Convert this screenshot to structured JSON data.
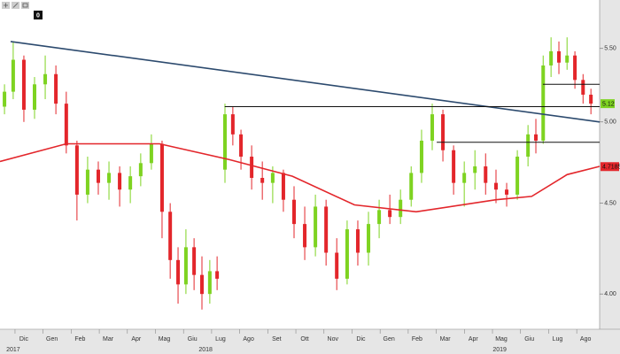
{
  "toolbar": {
    "badge": "0"
  },
  "chart_data": {
    "type": "candlestick",
    "log_scale": true,
    "ylim": [
      3.83,
      5.79
    ],
    "yticks": [
      {
        "value": 4,
        "label": "4.00"
      },
      {
        "value": 4.5,
        "label": "4.50"
      },
      {
        "value": 5,
        "label": "5.00"
      },
      {
        "value": 5.5,
        "label": "5.50"
      }
    ],
    "xlim": [
      0.15,
      21.5
    ],
    "xticks": [
      {
        "value": 1,
        "label": "Dic"
      },
      {
        "value": 2,
        "label": "Gen"
      },
      {
        "value": 3,
        "label": "Feb"
      },
      {
        "value": 4,
        "label": "Mar"
      },
      {
        "value": 5,
        "label": "Apr"
      },
      {
        "value": 6,
        "label": "Mag"
      },
      {
        "value": 7,
        "label": "Giu"
      },
      {
        "value": 8,
        "label": "Lug"
      },
      {
        "value": 9,
        "label": "Ago"
      },
      {
        "value": 10,
        "label": "Set"
      },
      {
        "value": 11,
        "label": "Ott"
      },
      {
        "value": 12,
        "label": "Nov"
      },
      {
        "value": 13,
        "label": "Dic"
      },
      {
        "value": 14,
        "label": "Gen"
      },
      {
        "value": 15,
        "label": "Feb"
      },
      {
        "value": 16,
        "label": "Mar"
      },
      {
        "value": 17,
        "label": "Apr"
      },
      {
        "value": 18,
        "label": "Mag"
      },
      {
        "value": 19,
        "label": "Giu"
      },
      {
        "value": 20,
        "label": "Lug"
      },
      {
        "value": 21,
        "label": "Ago"
      }
    ],
    "year_labels": [
      {
        "value": 0.62,
        "label": "2017"
      },
      {
        "value": 7.47,
        "label": "2018"
      },
      {
        "value": 17.94,
        "label": "2019"
      }
    ],
    "candles": {
      "up_color": "#7ed321",
      "down_color": "#e3262b",
      "x": [
        0.31,
        0.62,
        1.0,
        1.38,
        1.76,
        2.14,
        2.51,
        2.89,
        3.27,
        3.65,
        4.03,
        4.41,
        4.79,
        5.16,
        5.54,
        5.92,
        6.21,
        6.49,
        6.77,
        7.06,
        7.34,
        7.62,
        7.88,
        8.16,
        8.44,
        8.73,
        9.11,
        9.49,
        9.86,
        10.24,
        10.62,
        11.0,
        11.38,
        11.76,
        12.14,
        12.51,
        12.89,
        13.27,
        13.65,
        14.03,
        14.41,
        14.79,
        15.16,
        15.54,
        15.92,
        16.3,
        16.68,
        17.06,
        17.44,
        17.81,
        18.19,
        18.57,
        18.95,
        19.23,
        19.49,
        19.77,
        20.05,
        20.34,
        20.62,
        20.91,
        21.19
      ],
      "open": [
        5.1,
        5.2,
        5.42,
        5.08,
        5.25,
        5.32,
        5.12,
        4.85,
        4.55,
        4.7,
        4.62,
        4.68,
        4.58,
        4.66,
        4.74,
        4.86,
        4.45,
        4.18,
        4.05,
        4.25,
        4.1,
        4.0,
        4.12,
        4.7,
        5.05,
        4.92,
        4.78,
        4.65,
        4.62,
        4.68,
        4.52,
        4.38,
        4.25,
        4.48,
        4.22,
        4.08,
        4.35,
        4.22,
        4.38,
        4.46,
        4.42,
        4.52,
        4.68,
        4.88,
        5.05,
        4.82,
        4.62,
        4.68,
        4.72,
        4.62,
        4.58,
        4.55,
        4.78,
        4.92,
        4.88,
        5.38,
        5.48,
        5.4,
        5.45,
        5.28,
        5.18
      ],
      "high": [
        5.25,
        5.55,
        5.45,
        5.3,
        5.45,
        5.38,
        5.2,
        4.88,
        4.78,
        4.75,
        4.75,
        4.72,
        4.72,
        4.8,
        4.92,
        4.88,
        4.5,
        4.25,
        4.35,
        4.3,
        4.2,
        4.18,
        4.2,
        5.12,
        5.1,
        4.95,
        4.85,
        4.75,
        4.72,
        4.7,
        4.6,
        4.48,
        4.55,
        4.52,
        4.3,
        4.4,
        4.4,
        4.45,
        4.52,
        4.55,
        4.58,
        4.72,
        4.95,
        5.12,
        5.08,
        4.85,
        4.75,
        4.82,
        4.8,
        4.7,
        4.62,
        4.82,
        4.98,
        5.02,
        5.45,
        5.58,
        5.55,
        5.58,
        5.48,
        5.32,
        5.22
      ],
      "low": [
        5.05,
        5.15,
        5.0,
        5.02,
        5.15,
        5.05,
        4.8,
        4.4,
        4.5,
        4.55,
        4.52,
        4.48,
        4.5,
        4.6,
        4.7,
        4.3,
        4.08,
        3.95,
        4.0,
        4.02,
        3.92,
        3.95,
        4.02,
        4.62,
        4.85,
        4.7,
        4.58,
        4.52,
        4.5,
        4.45,
        4.3,
        4.18,
        4.2,
        4.15,
        4.02,
        4.05,
        4.15,
        4.15,
        4.3,
        4.38,
        4.38,
        4.48,
        4.62,
        4.82,
        4.75,
        4.55,
        4.48,
        4.58,
        4.55,
        4.5,
        4.48,
        4.52,
        4.72,
        4.8,
        4.86,
        5.3,
        5.32,
        5.35,
        5.22,
        5.12,
        5.05
      ],
      "close": [
        5.2,
        5.42,
        5.08,
        5.25,
        5.32,
        5.12,
        4.85,
        4.55,
        4.7,
        4.62,
        4.68,
        4.58,
        4.66,
        4.74,
        4.86,
        4.45,
        4.18,
        4.05,
        4.25,
        4.1,
        4.0,
        4.12,
        4.08,
        5.05,
        4.92,
        4.78,
        4.65,
        4.62,
        4.68,
        4.52,
        4.38,
        4.25,
        4.48,
        4.22,
        4.08,
        4.35,
        4.22,
        4.38,
        4.46,
        4.42,
        4.52,
        4.68,
        4.88,
        5.05,
        4.82,
        4.62,
        4.68,
        4.72,
        4.62,
        4.58,
        4.55,
        4.78,
        4.92,
        4.88,
        5.38,
        5.48,
        5.4,
        5.45,
        5.28,
        5.18,
        5.12
      ]
    },
    "moving_average": {
      "color": "#e3262b",
      "x": [
        0.15,
        2.51,
        5.83,
        8.35,
        10.56,
        12.77,
        14.97,
        17.81,
        19.08,
        20.34,
        21.5
      ],
      "values": [
        4.75,
        4.86,
        4.86,
        4.76,
        4.66,
        4.49,
        4.45,
        4.52,
        4.54,
        4.67,
        4.72
      ]
    },
    "trendline": {
      "color": "#2c4a6e",
      "x": [
        0.53,
        21.5
      ],
      "values": [
        5.55,
        5.0
      ]
    },
    "levels": [
      {
        "value": 5.1,
        "x": [
          8.15,
          21.5
        ]
      },
      {
        "value": 4.87,
        "x": [
          15.7,
          21.5
        ]
      },
      {
        "value": 5.25,
        "x": [
          19.48,
          21.5
        ]
      }
    ],
    "level_color": "#111111",
    "last_price": 5.12,
    "last_price_color": "#7ed321",
    "ma_last": 4.7185,
    "ma_last_color": "#e3262b"
  }
}
